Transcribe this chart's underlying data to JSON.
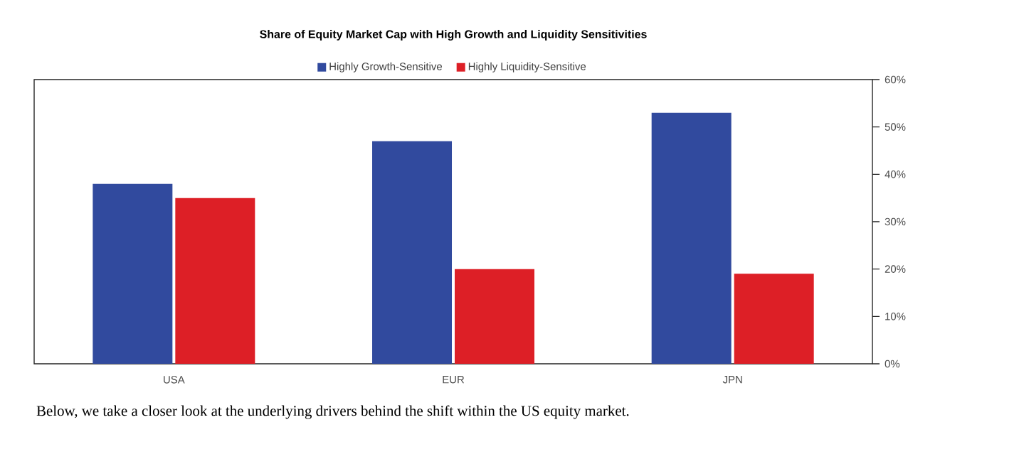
{
  "chart_data": {
    "type": "bar",
    "title": "Share of Equity Market Cap with High Growth and Liquidity Sensitivities",
    "categories": [
      "USA",
      "EUR",
      "JPN"
    ],
    "series": [
      {
        "name": "Highly Growth-Sensitive",
        "color": "#314a9e",
        "values": [
          38,
          47,
          53
        ]
      },
      {
        "name": "Highly Liquidity-Sensitive",
        "color": "#dd1f26",
        "values": [
          35,
          20,
          19
        ]
      }
    ],
    "ylim": [
      0,
      60
    ],
    "yticks": [
      {
        "value": 0,
        "label": "0%"
      },
      {
        "value": 10,
        "label": "10%"
      },
      {
        "value": 20,
        "label": "20%"
      },
      {
        "value": 30,
        "label": "30%"
      },
      {
        "value": 40,
        "label": "40%"
      },
      {
        "value": 50,
        "label": "50%"
      },
      {
        "value": 60,
        "label": "60%"
      }
    ],
    "legend": "top",
    "grid": false,
    "annotations": [
      "Below, we take a closer look at the underlying drivers behind the shift within the US equity market."
    ]
  }
}
